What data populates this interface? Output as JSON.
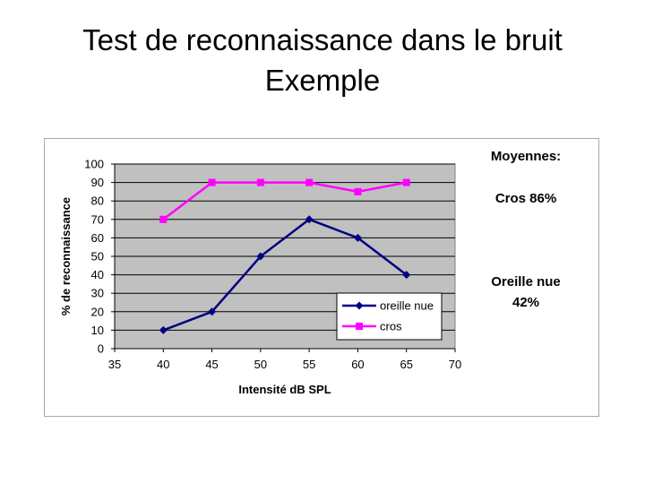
{
  "slide": {
    "title_line1": "Test de reconnaissance dans le bruit",
    "title_line2": "Exemple"
  },
  "notes": {
    "averages_heading": "Moyennes:",
    "cros_average": "Cros 86%",
    "bare_ear_line1": "Oreille nue",
    "bare_ear_line2": "42%"
  },
  "colors": {
    "plot_background": "#c0c0c0",
    "grid": "#000000",
    "oreille_nue": "#000080",
    "cros": "#ff00ff"
  },
  "chart_data": {
    "type": "line",
    "title": "",
    "xlabel": "Intensité dB SPL",
    "ylabel": "% de reconnaissance",
    "xlim": [
      35,
      70
    ],
    "ylim": [
      0,
      100
    ],
    "x_ticks": [
      "35",
      "40",
      "45",
      "50",
      "55",
      "60",
      "65",
      "70"
    ],
    "y_ticks": [
      "0",
      "10",
      "20",
      "30",
      "40",
      "50",
      "60",
      "70",
      "80",
      "90",
      "100"
    ],
    "grid": true,
    "legend_position": "bottom-right",
    "series": [
      {
        "name": "oreille nue",
        "marker": "diamond",
        "x": [
          40,
          45,
          50,
          55,
          60,
          65
        ],
        "y": [
          10,
          20,
          50,
          70,
          60,
          40
        ]
      },
      {
        "name": "cros",
        "marker": "square",
        "x": [
          40,
          45,
          50,
          55,
          60,
          65
        ],
        "y": [
          70,
          90,
          90,
          90,
          85,
          90
        ]
      }
    ]
  }
}
